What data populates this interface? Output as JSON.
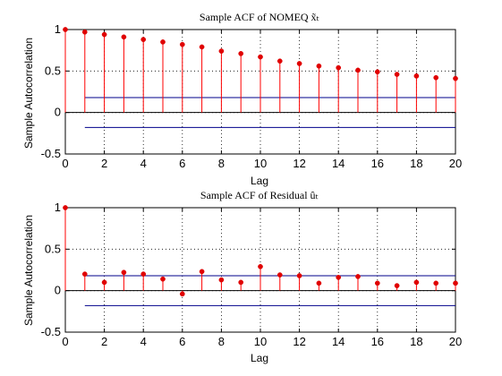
{
  "chart_data": [
    {
      "type": "stem",
      "title": "Sample ACF of NOMEQ x̃ₜ",
      "xlabel": "Lag",
      "ylabel": "Sample Autocorrelation",
      "xlim": [
        0,
        20
      ],
      "ylim": [
        -0.5,
        1
      ],
      "xticks": [
        0,
        2,
        4,
        6,
        8,
        10,
        12,
        14,
        16,
        18,
        20
      ],
      "yticks": [
        -0.5,
        0,
        0.5,
        1
      ],
      "grid": true,
      "lags": [
        0,
        1,
        2,
        3,
        4,
        5,
        6,
        7,
        8,
        9,
        10,
        11,
        12,
        13,
        14,
        15,
        16,
        17,
        18,
        19,
        20
      ],
      "values": [
        1.0,
        0.97,
        0.94,
        0.91,
        0.88,
        0.85,
        0.82,
        0.79,
        0.74,
        0.71,
        0.67,
        0.62,
        0.59,
        0.56,
        0.54,
        0.51,
        0.49,
        0.46,
        0.44,
        0.42,
        0.41
      ],
      "confidence_bounds": [
        0.18,
        -0.18
      ],
      "colors": {
        "stem": "#ff0000",
        "marker": "#e00000",
        "bounds": "#00008b",
        "zero": "#000000"
      }
    },
    {
      "type": "stem",
      "title": "Sample ACF of Residual ûₜ",
      "xlabel": "Lag",
      "ylabel": "Sample Autocorrelation",
      "xlim": [
        0,
        20
      ],
      "ylim": [
        -0.5,
        1
      ],
      "xticks": [
        0,
        2,
        4,
        6,
        8,
        10,
        12,
        14,
        16,
        18,
        20
      ],
      "yticks": [
        -0.5,
        0,
        0.5,
        1
      ],
      "grid": true,
      "lags": [
        0,
        1,
        2,
        3,
        4,
        5,
        6,
        7,
        8,
        9,
        10,
        11,
        12,
        13,
        14,
        15,
        16,
        17,
        18,
        19,
        20
      ],
      "values": [
        1.0,
        0.2,
        0.1,
        0.22,
        0.2,
        0.14,
        -0.04,
        0.23,
        0.13,
        0.1,
        0.29,
        0.19,
        0.18,
        0.09,
        0.16,
        0.17,
        0.09,
        0.06,
        0.1,
        0.09,
        0.09
      ],
      "confidence_bounds": [
        0.18,
        -0.18
      ],
      "colors": {
        "stem": "#ff0000",
        "marker": "#e00000",
        "bounds": "#00008b",
        "zero": "#000000"
      }
    }
  ]
}
